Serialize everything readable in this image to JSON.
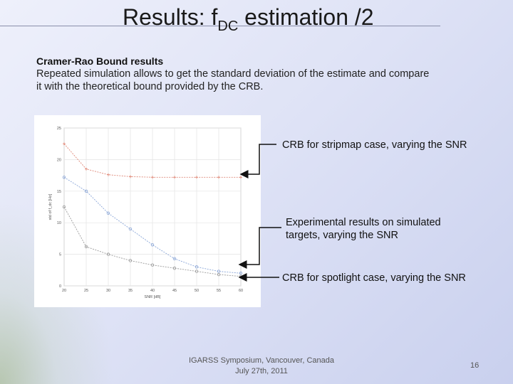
{
  "slide": {
    "title_main": "Results: f",
    "title_sub": "DC",
    "title_rest": " estimation /2",
    "subhead": "Cramer-Rao Bound results",
    "paragraph": "Repeated simulation allows to get the standard deviation of the estimate and compare it with the theoretical bound provided by the CRB.",
    "callouts": [
      "CRB for stripmap case, varying the SNR",
      "Experimental results on simulated targets, varying the SNR",
      "CRB for spotlight case, varying the SNR"
    ],
    "footer_line1": "IGARSS Symposium, Vancouver, Canada",
    "footer_line2": "July 27th, 2011",
    "page_number": "16"
  },
  "chart_data": {
    "type": "line",
    "x": [
      20,
      25,
      30,
      35,
      40,
      45,
      50,
      55,
      60
    ],
    "xlabel": "SNR [dB]",
    "ylabel": "std of f_dc [Hz]",
    "xlim": [
      20,
      60
    ],
    "ylim": [
      0,
      25
    ],
    "xticks": [
      "20",
      "25",
      "30",
      "35",
      "40",
      "45",
      "50",
      "55",
      "60"
    ],
    "yticks": [
      "0",
      "5",
      "10",
      "15",
      "20",
      "25"
    ],
    "grid": true,
    "series": [
      {
        "values": [
          22.5,
          18.5,
          17.6,
          17.3,
          17.2,
          17.2,
          17.2,
          17.2,
          17.2
        ],
        "color": "#e08a7a",
        "marker": "plus"
      },
      {
        "values": [
          17.2,
          15.0,
          11.5,
          9.0,
          6.5,
          4.3,
          3.0,
          2.3,
          2.0
        ],
        "color": "#8aa6d8",
        "marker": "circle"
      },
      {
        "values": [
          12.5,
          6.2,
          5.0,
          4.0,
          3.3,
          2.8,
          2.3,
          1.8,
          1.5
        ],
        "color": "#9a9a9a",
        "marker": "circle"
      }
    ]
  }
}
